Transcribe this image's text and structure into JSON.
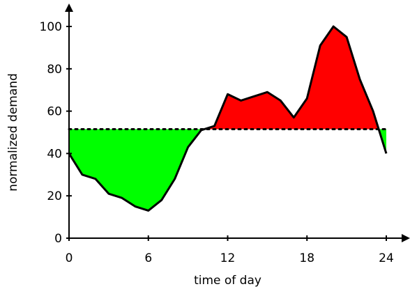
{
  "chart_data": {
    "type": "area",
    "xlabel": "time of day",
    "ylabel": "normalized demand",
    "xlim": [
      0,
      24
    ],
    "ylim": [
      0,
      100
    ],
    "xticks": [
      0,
      6,
      12,
      18,
      24
    ],
    "yticks": [
      0,
      20,
      40,
      60,
      80,
      100
    ],
    "threshold": 51.5,
    "colors": {
      "below": "#00ff00",
      "above": "#ff0000",
      "line": "#000000"
    },
    "series": [
      {
        "x": [
          0,
          1,
          2,
          3,
          4,
          5,
          6,
          7,
          8,
          9,
          10,
          11,
          12,
          13,
          14,
          15,
          16,
          17,
          18,
          19,
          20,
          21,
          22,
          23,
          24
        ],
        "values": [
          40,
          30,
          28,
          21,
          19,
          15,
          13,
          18,
          28,
          43,
          51,
          53,
          68,
          65,
          67,
          69,
          65,
          57,
          66,
          91,
          100,
          95,
          75,
          60,
          40
        ]
      }
    ]
  }
}
